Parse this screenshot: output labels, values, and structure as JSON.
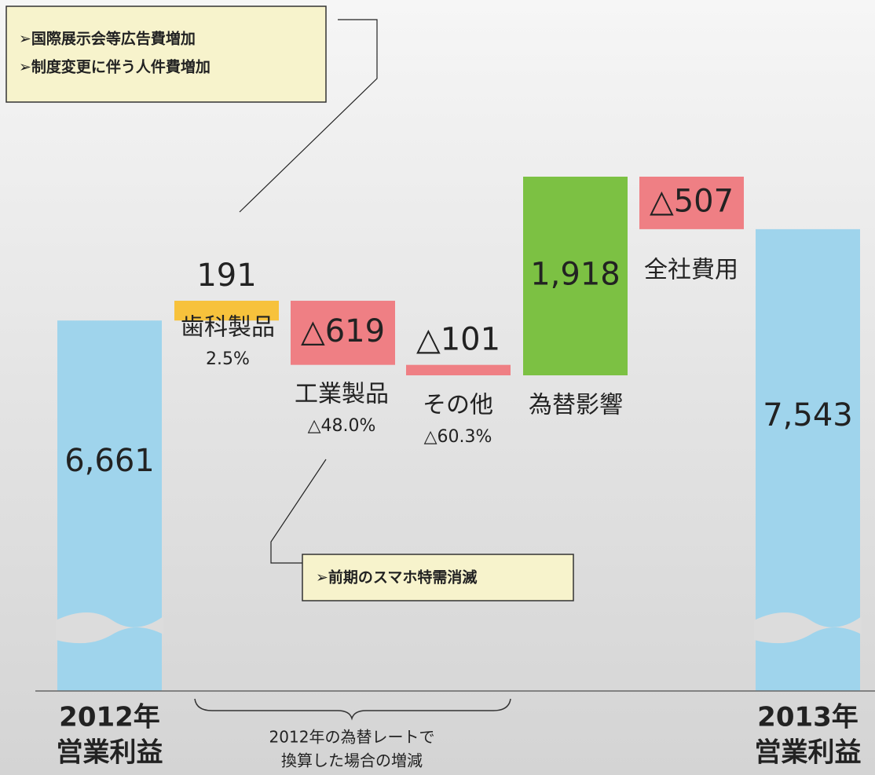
{
  "chart_data": {
    "type": "waterfall",
    "categories": [
      [
        "2012年",
        "営業利益"
      ],
      [
        "歯科製品"
      ],
      [
        "工業製品"
      ],
      [
        "その他"
      ],
      [
        "為替影響"
      ],
      [
        "全社費用"
      ],
      [
        "2013年",
        "営業利益"
      ]
    ],
    "values": [
      6661,
      191,
      -619,
      -101,
      1918,
      -507,
      7543
    ],
    "value_labels": [
      "6,661",
      "191",
      "△619",
      "△101",
      "1,918",
      "△507",
      "7,543"
    ],
    "growth_rates": [
      null,
      2.5,
      -48.0,
      -60.3,
      null,
      null,
      null
    ],
    "growth_labels": [
      null,
      "2.5%",
      "△48.0%",
      "△60.3%",
      null,
      null,
      null
    ],
    "colors": [
      "#9fd4ec",
      "#f7c23c",
      "#ef7f84",
      "#ef7f84",
      "#7cc143",
      "#ef7f84",
      "#9fd4ec"
    ],
    "annotations": [
      {
        "lines": [
          "➢国際展示会等広告費増加",
          "➢制度変更に伴う人件費増加"
        ]
      },
      {
        "lines": [
          "➢前期のスマホ特需消滅"
        ]
      },
      {
        "lines": [
          "2012年の為替レートで",
          "換算した場合の増減"
        ]
      }
    ]
  }
}
